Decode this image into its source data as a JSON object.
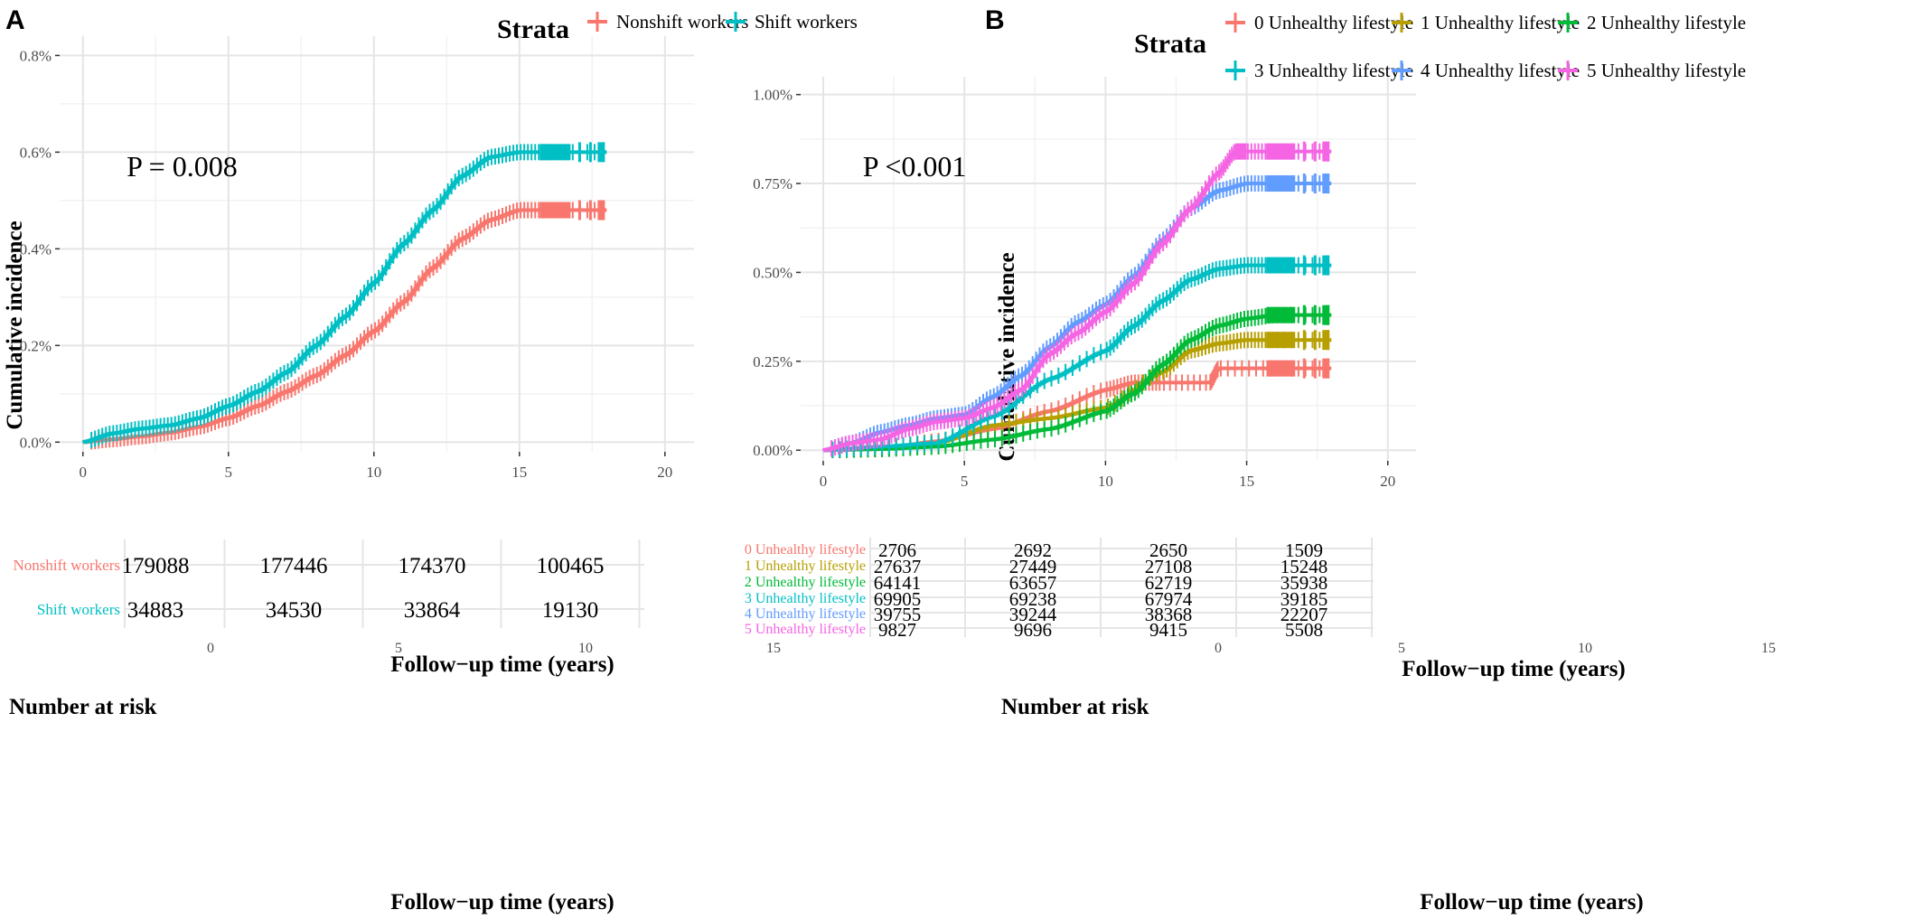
{
  "chart_data": [
    {
      "panel_label": "A",
      "type": "line",
      "legend_title": "Strata",
      "legend_position": "top-right",
      "xlabel": "Follow−up time (years)",
      "ylabel": "Cumulative incidence",
      "xlim": [
        -0.8,
        21
      ],
      "ylim": [
        -0.0002,
        0.0084
      ],
      "x_ticks": [
        0,
        5,
        10,
        15,
        20
      ],
      "y_ticks": [
        0,
        0.002,
        0.004,
        0.006,
        0.008
      ],
      "y_tick_labels": [
        "0.0%",
        "0.2%",
        "0.4%",
        "0.6%",
        "0.8%"
      ],
      "grid": true,
      "annotation": "P = 0.008",
      "annotation_xy": [
        1.5,
        0.0055
      ],
      "series": [
        {
          "name": "Nonshift workers",
          "color": "#F8766D",
          "points": [
            [
              0,
              0
            ],
            [
              1,
              6e-05
            ],
            [
              2,
              0.00012
            ],
            [
              3,
              0.0002
            ],
            [
              4,
              0.00032
            ],
            [
              5,
              0.0005
            ],
            [
              6,
              0.00075
            ],
            [
              7,
              0.00105
            ],
            [
              8,
              0.00138
            ],
            [
              9,
              0.0018
            ],
            [
              10,
              0.0023
            ],
            [
              11,
              0.0029
            ],
            [
              12,
              0.0036
            ],
            [
              13,
              0.0042
            ],
            [
              14,
              0.0046
            ],
            [
              15,
              0.0048
            ],
            [
              16,
              0.0048
            ],
            [
              18,
              0.0048
            ]
          ]
        },
        {
          "name": "Shift workers",
          "color": "#00BFC4",
          "points": [
            [
              0,
              0
            ],
            [
              1,
              0.00018
            ],
            [
              2,
              0.00028
            ],
            [
              3,
              0.00035
            ],
            [
              4,
              0.0005
            ],
            [
              5,
              0.00075
            ],
            [
              6,
              0.00105
            ],
            [
              7,
              0.00145
            ],
            [
              8,
              0.002
            ],
            [
              9,
              0.0026
            ],
            [
              10,
              0.0033
            ],
            [
              11,
              0.0041
            ],
            [
              12,
              0.0048
            ],
            [
              13,
              0.0055
            ],
            [
              14,
              0.0059
            ],
            [
              15,
              0.006
            ],
            [
              16,
              0.006
            ],
            [
              18,
              0.006
            ]
          ]
        }
      ],
      "risk_table": {
        "title": "Number at risk",
        "xlabel": "Follow−up time (years)",
        "time_points": [
          0,
          5,
          10,
          15
        ],
        "time_labels": [
          "0",
          "5",
          "10",
          "15"
        ],
        "rows": [
          {
            "name": "Nonshift workers",
            "color": "#F8766D",
            "values": [
              "179088",
              "177446",
              "174370",
              "100465"
            ]
          },
          {
            "name": "Shift workers",
            "color": "#00BFC4",
            "values": [
              "34883",
              "34530",
              "33864",
              "19130"
            ]
          }
        ]
      }
    },
    {
      "panel_label": "B",
      "type": "line",
      "legend_title": "Strata",
      "legend_position": "top",
      "xlabel": "Follow−up time (years)",
      "ylabel": "Cumulative incidence",
      "xlim": [
        -0.8,
        21
      ],
      "ylim": [
        -0.0003,
        0.0105
      ],
      "x_ticks": [
        0,
        5,
        10,
        15,
        20
      ],
      "y_ticks": [
        0,
        0.0025,
        0.005,
        0.0075,
        0.01
      ],
      "y_tick_labels": [
        "0.00%",
        "0.25%",
        "0.50%",
        "0.75%",
        "1.00%"
      ],
      "grid": true,
      "annotation": "P <0.001",
      "annotation_xy": [
        1.4,
        0.0077
      ],
      "series": [
        {
          "name": "0 Unhealthy lifestyle",
          "color": "#F8766D",
          "points": [
            [
              0,
              0
            ],
            [
              2,
              3e-05
            ],
            [
              4,
              0.00025
            ],
            [
              6,
              0.0006
            ],
            [
              8,
              0.0011
            ],
            [
              10,
              0.0017
            ],
            [
              11,
              0.0019
            ],
            [
              12,
              0.0019
            ],
            [
              13.7,
              0.0019
            ],
            [
              14,
              0.0023
            ],
            [
              16,
              0.0023
            ],
            [
              18,
              0.0023
            ]
          ]
        },
        {
          "name": "1 Unhealthy lifestyle",
          "color": "#B79F00",
          "points": [
            [
              0,
              0
            ],
            [
              2,
              5e-05
            ],
            [
              4,
              0.0002
            ],
            [
              6,
              0.0007
            ],
            [
              8,
              0.0009
            ],
            [
              10,
              0.0012
            ],
            [
              12,
              0.0022
            ],
            [
              13,
              0.0028
            ],
            [
              14,
              0.003
            ],
            [
              15,
              0.0031
            ],
            [
              16,
              0.0031
            ],
            [
              18,
              0.0031
            ]
          ]
        },
        {
          "name": "2 Unhealthy lifestyle",
          "color": "#00BA38",
          "points": [
            [
              0,
              0
            ],
            [
              2,
              3e-05
            ],
            [
              4,
              0.0001
            ],
            [
              6,
              0.0003
            ],
            [
              8,
              0.0006
            ],
            [
              10,
              0.0011
            ],
            [
              11,
              0.0016
            ],
            [
              12,
              0.0024
            ],
            [
              13,
              0.0031
            ],
            [
              14,
              0.0035
            ],
            [
              15,
              0.0037
            ],
            [
              16,
              0.0038
            ],
            [
              18,
              0.0038
            ]
          ]
        },
        {
          "name": "3 Unhealthy lifestyle",
          "color": "#00BFC4",
          "points": [
            [
              0,
              0
            ],
            [
              2,
              0.0001
            ],
            [
              4,
              0.0002
            ],
            [
              6,
              0.00095
            ],
            [
              8,
              0.002
            ],
            [
              10,
              0.0028
            ],
            [
              11,
              0.0035
            ],
            [
              12,
              0.0042
            ],
            [
              13,
              0.0048
            ],
            [
              14,
              0.0051
            ],
            [
              15,
              0.0052
            ],
            [
              16,
              0.0052
            ],
            [
              18,
              0.0052
            ]
          ]
        },
        {
          "name": "4 Unhealthy lifestyle",
          "color": "#619CFF",
          "points": [
            [
              0,
              0
            ],
            [
              1,
              0.0002
            ],
            [
              2,
              0.0005
            ],
            [
              3,
              0.0007
            ],
            [
              4,
              0.0009
            ],
            [
              5,
              0.001
            ],
            [
              6,
              0.0015
            ],
            [
              7,
              0.0021
            ],
            [
              8,
              0.0029
            ],
            [
              9,
              0.0036
            ],
            [
              10,
              0.0041
            ],
            [
              11,
              0.0049
            ],
            [
              12,
              0.0059
            ],
            [
              13,
              0.0068
            ],
            [
              14,
              0.0073
            ],
            [
              15,
              0.0075
            ],
            [
              16,
              0.0075
            ],
            [
              18,
              0.0075
            ]
          ]
        },
        {
          "name": "5 Unhealthy lifestyle",
          "color": "#F564E3",
          "points": [
            [
              0,
              0
            ],
            [
              1,
              0.0002
            ],
            [
              2,
              0.0003
            ],
            [
              3,
              0.0006
            ],
            [
              4,
              0.0008
            ],
            [
              5,
              0.0009
            ],
            [
              6,
              0.0012
            ],
            [
              7,
              0.0017
            ],
            [
              8,
              0.0027
            ],
            [
              9,
              0.0033
            ],
            [
              10,
              0.0039
            ],
            [
              11,
              0.0047
            ],
            [
              12,
              0.0058
            ],
            [
              13,
              0.0068
            ],
            [
              14,
              0.0078
            ],
            [
              14.6,
              0.0084
            ],
            [
              15,
              0.0084
            ],
            [
              16,
              0.0084
            ],
            [
              18,
              0.0084
            ]
          ]
        }
      ],
      "risk_table": {
        "title": "Number at risk",
        "xlabel": "Follow−up time (years)",
        "time_points": [
          0,
          5,
          10,
          15
        ],
        "time_labels": [
          "0",
          "5",
          "10",
          "15"
        ],
        "rows": [
          {
            "name": "0 Unhealthy lifestyle",
            "color": "#F8766D",
            "values": [
              "2706",
              "2692",
              "2650",
              "1509"
            ]
          },
          {
            "name": "1 Unhealthy lifestyle",
            "color": "#B79F00",
            "values": [
              "27637",
              "27449",
              "27108",
              "15248"
            ]
          },
          {
            "name": "2 Unhealthy lifestyle",
            "color": "#00BA38",
            "values": [
              "64141",
              "63657",
              "62719",
              "35938"
            ]
          },
          {
            "name": "3 Unhealthy lifestyle",
            "color": "#00BFC4",
            "values": [
              "69905",
              "69238",
              "67974",
              "39185"
            ]
          },
          {
            "name": "4 Unhealthy lifestyle",
            "color": "#619CFF",
            "values": [
              "39755",
              "39244",
              "38368",
              "22207"
            ]
          },
          {
            "name": "5 Unhealthy lifestyle",
            "color": "#F564E3",
            "values": [
              "9827",
              "9696",
              "9415",
              "5508"
            ]
          }
        ]
      }
    }
  ]
}
